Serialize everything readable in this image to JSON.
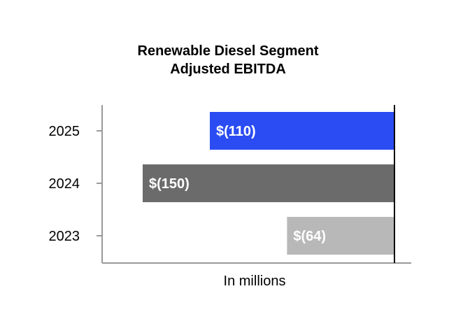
{
  "chart_data": {
    "type": "bar",
    "orientation": "horizontal",
    "title_lines": [
      "Renewable Diesel Segment",
      "Adjusted EBITDA"
    ],
    "xlabel": "In millions",
    "ylabel": "",
    "categories": [
      "2025",
      "2024",
      "2023"
    ],
    "values": [
      -110,
      -150,
      -64
    ],
    "data_labels": [
      "$(110)",
      "$(150)",
      "$(64)"
    ],
    "colors": [
      "#2b4cf2",
      "#6b6b6b",
      "#b8b8b8"
    ],
    "xlim": [
      -170,
      0
    ],
    "grid": false,
    "legend": "none"
  }
}
